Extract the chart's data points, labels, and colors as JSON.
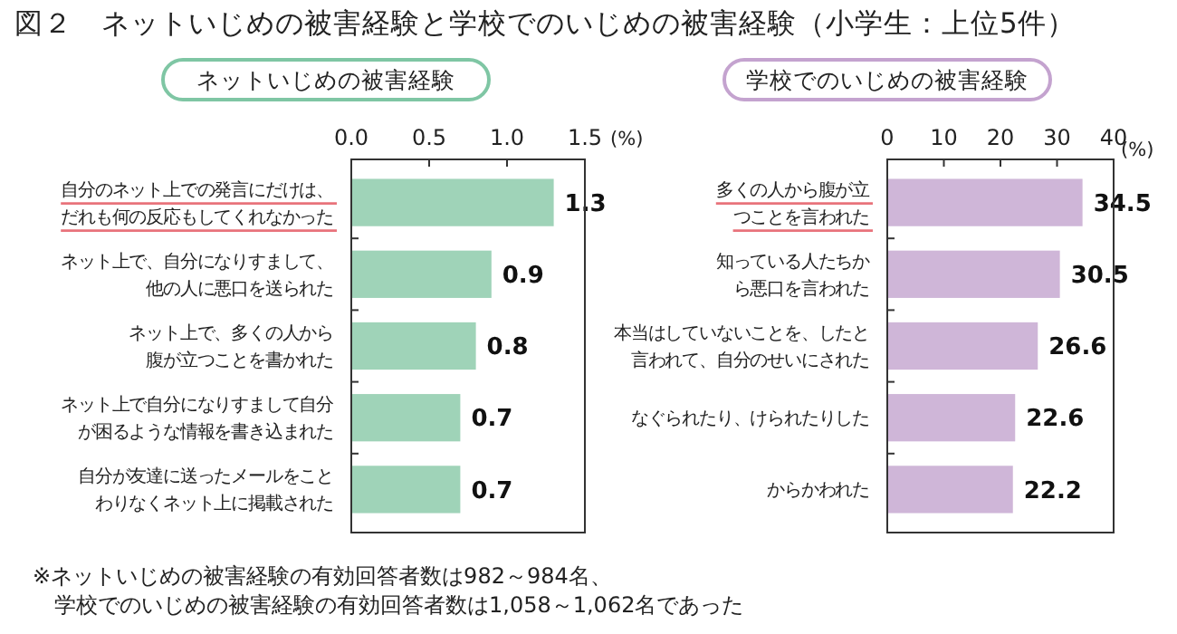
{
  "chart_data": [
    {
      "type": "bar",
      "orientation": "horizontal",
      "title": "図２　ネットいじめの被害経験と学校でのいじめの被害経験（小学生：上位5件）",
      "subtitle": "ネットいじめの被害経験",
      "xlabel": "(%)",
      "categories": [
        "自分のネット上での発言にだけは、だれも何の反応もしてくれなかった",
        "ネット上で、自分になりすまして、他の人に悪口を送られた",
        "ネット上で、多くの人から腹が立つことを書かれた",
        "ネット上で自分になりすまして自分が困るような情報を書き込まれた",
        "自分が友達に送ったメールをことわりなくネット上に掲載された"
      ],
      "values": [
        1.3,
        0.9,
        0.8,
        0.7,
        0.7
      ],
      "color": "#9fd3b8",
      "xlim": [
        0,
        1.5
      ],
      "xticks": [
        {
          "value": 0,
          "label": "0.0"
        },
        {
          "value": 0.5,
          "label": "0.5"
        },
        {
          "value": 1,
          "label": "1.0"
        },
        {
          "value": 1.5,
          "label": "1.5"
        }
      ],
      "data_labels": true,
      "annotations": [
        "※ネットいじめの被害経験の有効回答者数は982～984名、",
        "学校でのいじめの被害経験の有効回答者数は1,058～1,062名であった"
      ]
    },
    {
      "type": "bar",
      "orientation": "horizontal",
      "subtitle": "学校でのいじめの被害経験",
      "xlabel": "(%)",
      "categories": [
        "多くの人から腹が立つことを言われた",
        "知っている人たちから悪口を言われた",
        "本当はしていないことを、したと言われて、自分のせいにされた",
        "なぐられたり、けられたりした",
        "からかわれた"
      ],
      "values": [
        34.5,
        30.5,
        26.6,
        22.6,
        22.2
      ],
      "color": "#cfb6d8",
      "xlim": [
        0,
        40
      ],
      "xticks": [
        0,
        10,
        20,
        30,
        40
      ],
      "data_labels": true
    }
  ]
}
